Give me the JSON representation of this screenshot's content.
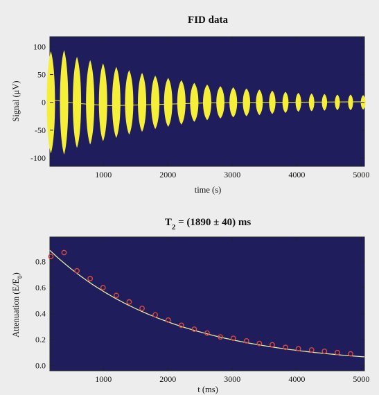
{
  "chart_data": [
    {
      "type": "line",
      "title": "FID data",
      "xlabel": "time (s)",
      "ylabel": "Signal (μV)",
      "xlim": [
        170,
        5050
      ],
      "ylim": [
        -115,
        118
      ],
      "xticks": [
        1000,
        2000,
        3000,
        4000,
        5000
      ],
      "yticks": [
        -100,
        -50,
        0,
        50,
        100
      ],
      "background_color": "#1f1d5c",
      "series": [
        {
          "color": "#f5ef3a",
          "style": "filled oscillating envelope",
          "peaks": [
            {
              "x": 185,
              "amp": 92
            },
            {
              "x": 390,
              "amp": 94
            },
            {
              "x": 590,
              "amp": 82
            },
            {
              "x": 795,
              "amp": 76
            },
            {
              "x": 995,
              "amp": 70
            },
            {
              "x": 1200,
              "amp": 64
            },
            {
              "x": 1400,
              "amp": 58
            },
            {
              "x": 1600,
              "amp": 53
            },
            {
              "x": 1805,
              "amp": 48
            },
            {
              "x": 2005,
              "amp": 44
            },
            {
              "x": 2210,
              "amp": 40
            },
            {
              "x": 2410,
              "amp": 35
            },
            {
              "x": 2610,
              "amp": 32
            },
            {
              "x": 2815,
              "amp": 29
            },
            {
              "x": 3015,
              "amp": 27
            },
            {
              "x": 3220,
              "amp": 25
            },
            {
              "x": 3420,
              "amp": 23
            },
            {
              "x": 3620,
              "amp": 21
            },
            {
              "x": 3825,
              "amp": 19
            },
            {
              "x": 4025,
              "amp": 17
            },
            {
              "x": 4230,
              "amp": 16
            },
            {
              "x": 4430,
              "amp": 15
            },
            {
              "x": 4630,
              "amp": 14
            },
            {
              "x": 4835,
              "amp": 14
            },
            {
              "x": 5030,
              "amp": 13
            }
          ],
          "baseline": [
            {
              "x": 170,
              "y": 5
            },
            {
              "x": 600,
              "y": -2
            },
            {
              "x": 1100,
              "y": -6
            },
            {
              "x": 1800,
              "y": -4
            },
            {
              "x": 2600,
              "y": -1
            },
            {
              "x": 3500,
              "y": 0
            },
            {
              "x": 5050,
              "y": 1
            }
          ]
        }
      ]
    },
    {
      "type": "scatter",
      "title": "T₂ = (1890 ± 40) ms",
      "title_parts": {
        "main": "T",
        "sub": "2",
        "rest": " = (1890 ± 40) ms"
      },
      "xlabel": "t (ms)",
      "ylabel": "Attenuation (E/E₀)",
      "ylabel_parts": {
        "main": "Attenuation (E/E",
        "sub": "0",
        "rest": ")"
      },
      "xlim": [
        170,
        5050
      ],
      "ylim": [
        -0.04,
        0.99
      ],
      "xticks": [
        1000,
        2000,
        3000,
        4000,
        5000
      ],
      "yticks": [
        0.0,
        0.2,
        0.4,
        0.6,
        0.8
      ],
      "background_color": "#1f1d5c",
      "points": {
        "color": "#d84a3c",
        "x": [
          185,
          390,
          590,
          795,
          995,
          1200,
          1400,
          1600,
          1805,
          2005,
          2210,
          2410,
          2610,
          2815,
          3015,
          3220,
          3420,
          3620,
          3825,
          4025,
          4230,
          4430,
          4630,
          4835
        ],
        "y": [
          0.84,
          0.87,
          0.73,
          0.67,
          0.6,
          0.54,
          0.49,
          0.44,
          0.39,
          0.35,
          0.31,
          0.28,
          0.25,
          0.22,
          0.21,
          0.19,
          0.17,
          0.16,
          0.14,
          0.13,
          0.12,
          0.11,
          0.1,
          0.09
        ]
      },
      "fit": {
        "color": "#e8e8a0",
        "model": "A*exp(-t/T2)",
        "A": 0.97,
        "T2": 1890
      }
    }
  ]
}
